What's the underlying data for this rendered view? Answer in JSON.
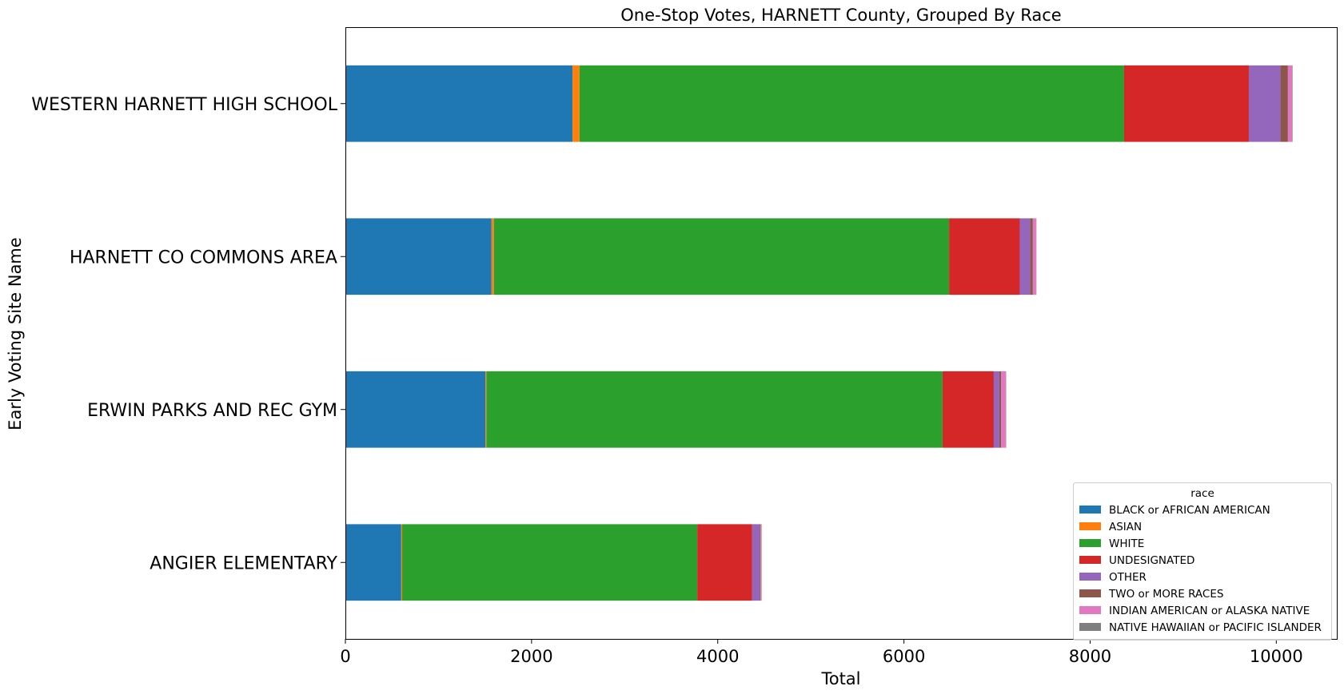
{
  "chart_data": {
    "type": "bar",
    "orientation": "horizontal",
    "stacked": true,
    "title": "One-Stop Votes, HARNETT County, Grouped By Race",
    "xlabel": "Total",
    "ylabel": "Early Voting Site Name",
    "xlim": [
      0,
      10650
    ],
    "xticks": [
      0,
      2000,
      4000,
      6000,
      8000,
      10000
    ],
    "categories": [
      "WESTERN HARNETT HIGH SCHOOL",
      "HARNETT CO COMMONS AREA",
      "ERWIN PARKS AND REC GYM",
      "ANGIER ELEMENTARY"
    ],
    "grid": false,
    "legend": {
      "title": "race",
      "placement": "lower-right"
    },
    "series": [
      {
        "name": "BLACK or AFRICAN AMERICAN",
        "color": "#1f77b4",
        "values": [
          2440,
          1570,
          1505,
          600
        ]
      },
      {
        "name": "ASIAN",
        "color": "#ff7f0e",
        "values": [
          75,
          25,
          10,
          10
        ]
      },
      {
        "name": "WHITE",
        "color": "#2ca02c",
        "values": [
          5850,
          4890,
          4900,
          3170
        ]
      },
      {
        "name": "UNDESIGNATED",
        "color": "#d62728",
        "values": [
          1340,
          760,
          550,
          590
        ]
      },
      {
        "name": "OTHER",
        "color": "#9467bd",
        "values": [
          340,
          110,
          60,
          80
        ]
      },
      {
        "name": "TWO or MORE RACES",
        "color": "#8c564b",
        "values": [
          80,
          30,
          20,
          10
        ]
      },
      {
        "name": "INDIAN AMERICAN or ALASKA NATIVE",
        "color": "#e377c2",
        "values": [
          45,
          35,
          50,
          10
        ]
      },
      {
        "name": "NATIVE HAWAIIAN or PACIFIC ISLANDER",
        "color": "#7f7f7f",
        "values": [
          5,
          3,
          3,
          2
        ]
      }
    ]
  }
}
